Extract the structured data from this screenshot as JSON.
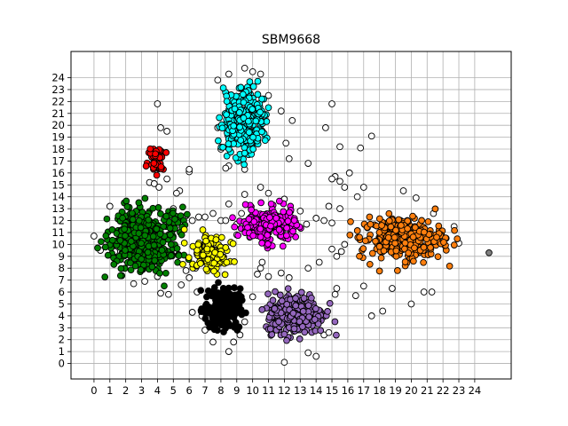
{
  "chart_data": {
    "type": "scatter",
    "title": "SBM9668",
    "xlabel": "",
    "ylabel": "",
    "xlim": [
      -1.45,
      26.3
    ],
    "ylim": [
      -1.3,
      26.2
    ],
    "xticks": [
      "0",
      "1",
      "2",
      "3",
      "4",
      "5",
      "6",
      "7",
      "8",
      "9",
      "10",
      "11",
      "12",
      "13",
      "14",
      "15",
      "16",
      "17",
      "18",
      "19",
      "20",
      "21",
      "22",
      "23",
      "24"
    ],
    "yticks": [
      "0",
      "1",
      "2",
      "3",
      "4",
      "5",
      "6",
      "7",
      "8",
      "9",
      "10",
      "11",
      "12",
      "13",
      "14",
      "15",
      "16",
      "17",
      "18",
      "19",
      "20",
      "21",
      "22",
      "23",
      "24"
    ],
    "grid": true,
    "legend": "none",
    "marker_edge_color": "#000000",
    "clusters": [
      {
        "color": "#008000",
        "center": [
          3.2,
          10.5
        ],
        "spread": [
          1.6,
          1.9
        ],
        "n": 420,
        "extent": [
          [
            0.2,
            6.0
          ],
          [
            6.5,
            14.0
          ]
        ]
      },
      {
        "color": "#ffff00",
        "center": [
          7.3,
          9.3
        ],
        "spread": [
          0.9,
          1.1
        ],
        "n": 140,
        "extent": [
          [
            5.2,
            9.4
          ],
          [
            6.8,
            11.4
          ]
        ]
      },
      {
        "color": "#ff0000",
        "center": [
          3.9,
          17.0
        ],
        "spread": [
          0.35,
          0.9
        ],
        "n": 45,
        "extent": [
          [
            3.2,
            4.6
          ],
          [
            15.5,
            19.7
          ]
        ]
      },
      {
        "color": "#00ffff",
        "center": [
          9.5,
          20.4
        ],
        "spread": [
          1.0,
          2.0
        ],
        "n": 320,
        "extent": [
          [
            7.8,
            11.2
          ],
          [
            16.5,
            24.2
          ]
        ]
      },
      {
        "color": "#ff00ff",
        "center": [
          10.9,
          11.6
        ],
        "spread": [
          1.3,
          1.0
        ],
        "n": 230,
        "extent": [
          [
            8.7,
            13.3
          ],
          [
            9.3,
            14.2
          ]
        ]
      },
      {
        "color": "#000000",
        "center": [
          8.1,
          4.6
        ],
        "spread": [
          0.8,
          1.2
        ],
        "n": 240,
        "extent": [
          [
            6.7,
            9.6
          ],
          [
            2.0,
            7.3
          ]
        ]
      },
      {
        "color": "#9467bd",
        "center": [
          12.7,
          4.2
        ],
        "spread": [
          1.3,
          1.2
        ],
        "n": 300,
        "extent": [
          [
            10.5,
            15.6
          ],
          [
            1.5,
            7.5
          ]
        ]
      },
      {
        "color": "#ff7f0e",
        "center": [
          19.4,
          10.5
        ],
        "spread": [
          1.9,
          1.3
        ],
        "n": 280,
        "extent": [
          [
            16.0,
            23.0
          ],
          [
            5.0,
            13.3
          ]
        ]
      },
      {
        "color": "#ffffff",
        "points": [
          [
            0.0,
            10.7
          ],
          [
            0.4,
            9.5
          ],
          [
            1.0,
            13.2
          ],
          [
            1.3,
            9.4
          ],
          [
            2.0,
            8.7
          ],
          [
            2.5,
            6.7
          ],
          [
            3.2,
            6.9
          ],
          [
            4.0,
            7.3
          ],
          [
            4.2,
            5.9
          ],
          [
            4.7,
            5.8
          ],
          [
            4.0,
            21.8
          ],
          [
            4.2,
            19.8
          ],
          [
            4.6,
            19.5
          ],
          [
            3.5,
            15.2
          ],
          [
            3.8,
            15.1
          ],
          [
            4.1,
            14.8
          ],
          [
            4.6,
            15.5
          ],
          [
            5.4,
            14.5
          ],
          [
            5.2,
            14.3
          ],
          [
            6.0,
            16.1
          ],
          [
            6.0,
            16.3
          ],
          [
            5.0,
            13.0
          ],
          [
            5.8,
            12.4
          ],
          [
            6.2,
            12.0
          ],
          [
            6.6,
            12.3
          ],
          [
            7.0,
            12.3
          ],
          [
            7.5,
            12.6
          ],
          [
            8.0,
            12.0
          ],
          [
            8.3,
            12.0
          ],
          [
            9.0,
            11.7
          ],
          [
            9.3,
            12.6
          ],
          [
            8.5,
            13.4
          ],
          [
            9.5,
            14.2
          ],
          [
            10.5,
            14.8
          ],
          [
            11.0,
            14.3
          ],
          [
            12.0,
            13.8
          ],
          [
            13.0,
            12.8
          ],
          [
            13.4,
            11.7
          ],
          [
            14.0,
            12.2
          ],
          [
            14.5,
            12.0
          ],
          [
            15.0,
            11.8
          ],
          [
            14.8,
            13.2
          ],
          [
            15.2,
            15.7
          ],
          [
            15.0,
            15.5
          ],
          [
            15.5,
            15.3
          ],
          [
            16.1,
            16.0
          ],
          [
            15.8,
            14.8
          ],
          [
            16.6,
            14.0
          ],
          [
            17.0,
            14.8
          ],
          [
            15.5,
            13.0
          ],
          [
            15.0,
            9.6
          ],
          [
            15.3,
            9.0
          ],
          [
            15.6,
            9.4
          ],
          [
            15.8,
            10.0
          ],
          [
            16.5,
            5.7
          ],
          [
            17.0,
            6.5
          ],
          [
            17.5,
            4.0
          ],
          [
            18.2,
            4.4
          ],
          [
            18.8,
            6.3
          ],
          [
            20.0,
            5.0
          ],
          [
            20.8,
            6.0
          ],
          [
            21.3,
            6.0
          ],
          [
            23.0,
            10.1
          ],
          [
            22.7,
            11.5
          ],
          [
            21.4,
            12.6
          ],
          [
            20.3,
            13.9
          ],
          [
            19.5,
            14.5
          ],
          [
            17.5,
            19.1
          ],
          [
            16.8,
            18.1
          ],
          [
            15.5,
            18.2
          ],
          [
            14.6,
            19.8
          ],
          [
            15.0,
            21.8
          ],
          [
            13.5,
            16.8
          ],
          [
            12.3,
            17.2
          ],
          [
            12.5,
            20.4
          ],
          [
            11.8,
            21.2
          ],
          [
            12.1,
            18.5
          ],
          [
            11.0,
            22.5
          ],
          [
            10.5,
            24.3
          ],
          [
            10.0,
            24.5
          ],
          [
            9.5,
            24.8
          ],
          [
            8.5,
            24.3
          ],
          [
            7.8,
            23.8
          ],
          [
            7.8,
            19.8
          ],
          [
            8.0,
            18.0
          ],
          [
            8.5,
            16.6
          ],
          [
            8.3,
            16.4
          ],
          [
            9.5,
            16.3
          ],
          [
            6.8,
            8.5
          ],
          [
            6.4,
            8.0
          ],
          [
            5.8,
            7.8
          ],
          [
            5.5,
            6.6
          ],
          [
            6.0,
            7.2
          ],
          [
            6.5,
            6.0
          ],
          [
            7.0,
            4.5
          ],
          [
            6.2,
            4.3
          ],
          [
            6.8,
            4.0
          ],
          [
            7.0,
            2.8
          ],
          [
            7.5,
            1.8
          ],
          [
            8.5,
            1.0
          ],
          [
            8.8,
            1.8
          ],
          [
            9.2,
            2.4
          ],
          [
            9.5,
            3.5
          ],
          [
            10.0,
            5.6
          ],
          [
            10.3,
            7.5
          ],
          [
            10.5,
            8.0
          ],
          [
            10.6,
            8.5
          ],
          [
            11.0,
            7.3
          ],
          [
            11.8,
            7.6
          ],
          [
            12.3,
            7.2
          ],
          [
            12.0,
            0.1
          ],
          [
            13.5,
            0.9
          ],
          [
            14.0,
            0.6
          ],
          [
            14.5,
            2.4
          ],
          [
            14.8,
            2.6
          ],
          [
            15.2,
            5.8
          ],
          [
            15.3,
            6.3
          ],
          [
            14.2,
            8.5
          ],
          [
            13.5,
            8.0
          ],
          [
            8.6,
            5.5
          ],
          [
            9.0,
            10.8
          ]
        ]
      }
    ]
  }
}
